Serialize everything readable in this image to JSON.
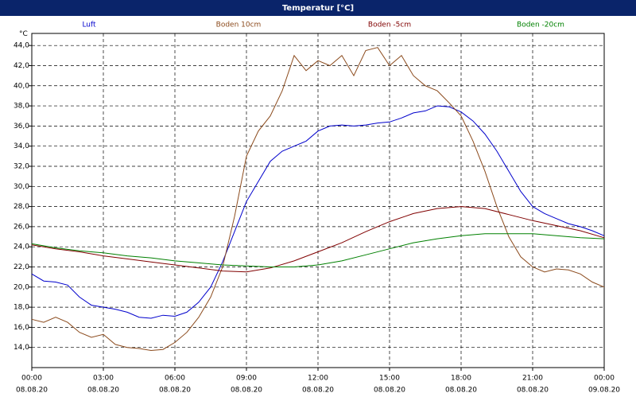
{
  "chart_data": {
    "type": "line",
    "title": "Temperatur [°C]",
    "y_unit": "°C",
    "xlim": [
      0,
      24
    ],
    "ylim": [
      12.0,
      45.2
    ],
    "grid": true,
    "xticks": [
      {
        "value": 0,
        "label": "00:00"
      },
      {
        "value": 3,
        "label": "03:00"
      },
      {
        "value": 6,
        "label": "06:00"
      },
      {
        "value": 9,
        "label": "09:00"
      },
      {
        "value": 12,
        "label": "12:00"
      },
      {
        "value": 15,
        "label": "15:00"
      },
      {
        "value": 18,
        "label": "18:00"
      },
      {
        "value": 21,
        "label": "21:00"
      },
      {
        "value": 24,
        "label": "00:00"
      }
    ],
    "xtick_dates": [
      "08.08.20",
      "08.08.20",
      "08.08.20",
      "08.08.20",
      "08.08.20",
      "08.08.20",
      "08.08.20",
      "08.08.20",
      "09.08.20"
    ],
    "yticks": [
      {
        "value": 14,
        "label": "14,0"
      },
      {
        "value": 16,
        "label": "16,0"
      },
      {
        "value": 18,
        "label": "18,0"
      },
      {
        "value": 20,
        "label": "20,0"
      },
      {
        "value": 22,
        "label": "22,0"
      },
      {
        "value": 24,
        "label": "24,0"
      },
      {
        "value": 26,
        "label": "26,0"
      },
      {
        "value": 28,
        "label": "28,0"
      },
      {
        "value": 30,
        "label": "30,0"
      },
      {
        "value": 32,
        "label": "32,0"
      },
      {
        "value": 34,
        "label": "34,0"
      },
      {
        "value": 36,
        "label": "36,0"
      },
      {
        "value": 38,
        "label": "38,0"
      },
      {
        "value": 40,
        "label": "40,0"
      },
      {
        "value": 42,
        "label": "42,0"
      },
      {
        "value": 44,
        "label": "44,0"
      }
    ],
    "series": [
      {
        "name": "Luft",
        "color": "#0000cc",
        "x": [
          0,
          0.5,
          1,
          1.5,
          2,
          2.5,
          3,
          3.5,
          4,
          4.5,
          5,
          5.5,
          6,
          6.5,
          7,
          7.5,
          8,
          8.5,
          9,
          9.5,
          10,
          10.5,
          11,
          11.5,
          12,
          12.5,
          13,
          13.5,
          14,
          14.5,
          15,
          15.5,
          16,
          16.5,
          17,
          17.5,
          18,
          18.5,
          19,
          19.5,
          20,
          20.5,
          21,
          21.5,
          22,
          22.5,
          23,
          23.5,
          24
        ],
        "values": [
          21.3,
          20.6,
          20.5,
          20.2,
          19.0,
          18.2,
          18.0,
          17.8,
          17.5,
          17.0,
          16.9,
          17.2,
          17.1,
          17.5,
          18.5,
          20.0,
          22.5,
          25.5,
          28.5,
          30.5,
          32.5,
          33.5,
          34.0,
          34.5,
          35.5,
          36.0,
          36.1,
          36.0,
          36.1,
          36.3,
          36.4,
          36.8,
          37.3,
          37.5,
          38.0,
          37.9,
          37.4,
          36.5,
          35.2,
          33.5,
          31.5,
          29.5,
          28.0,
          27.3,
          26.8,
          26.3,
          26.0,
          25.6,
          25.1
        ]
      },
      {
        "name": "Boden 10cm",
        "color": "#8b4a1c",
        "x": [
          0,
          0.5,
          1,
          1.5,
          2,
          2.5,
          3,
          3.5,
          4,
          4.5,
          5,
          5.5,
          6,
          6.5,
          7,
          7.5,
          8,
          8.5,
          9,
          9.5,
          10,
          10.5,
          11,
          11.5,
          12,
          12.5,
          13,
          13.5,
          14,
          14.5,
          15,
          15.5,
          16,
          16.5,
          17,
          17.5,
          18,
          18.5,
          19,
          19.5,
          20,
          20.5,
          21,
          21.5,
          22,
          22.5,
          23,
          23.5,
          24
        ],
        "values": [
          16.8,
          16.5,
          17.0,
          16.5,
          15.5,
          15.0,
          15.3,
          14.3,
          14.0,
          13.9,
          13.7,
          13.8,
          14.5,
          15.5,
          17.0,
          19.0,
          22.0,
          27.0,
          33.0,
          35.5,
          37.0,
          39.5,
          43.0,
          41.5,
          42.5,
          42.0,
          43.0,
          41.0,
          43.5,
          43.8,
          42.0,
          43.0,
          41.0,
          40.0,
          39.5,
          38.3,
          37.0,
          34.5,
          31.5,
          28.0,
          25.0,
          23.0,
          22.0,
          21.5,
          21.8,
          21.7,
          21.3,
          20.5,
          20.0
        ]
      },
      {
        "name": "Boden -5cm",
        "color": "#800000",
        "x": [
          0,
          1,
          2,
          3,
          4,
          5,
          6,
          7,
          8,
          9,
          10,
          11,
          12,
          13,
          14,
          15,
          16,
          17,
          18,
          19,
          20,
          21,
          22,
          23,
          24
        ],
        "values": [
          24.2,
          23.8,
          23.5,
          23.1,
          22.8,
          22.5,
          22.2,
          21.9,
          21.6,
          21.5,
          21.9,
          22.6,
          23.5,
          24.4,
          25.5,
          26.5,
          27.3,
          27.8,
          28.0,
          27.8,
          27.2,
          26.6,
          26.1,
          25.6,
          24.9
        ]
      },
      {
        "name": "Boden -20cm",
        "color": "#008000",
        "x": [
          0,
          1,
          2,
          3,
          4,
          5,
          6,
          7,
          8,
          9,
          10,
          11,
          12,
          13,
          14,
          15,
          16,
          17,
          18,
          19,
          20,
          21,
          22,
          23,
          24
        ],
        "values": [
          24.3,
          23.9,
          23.6,
          23.4,
          23.1,
          22.9,
          22.6,
          22.4,
          22.2,
          22.1,
          22.0,
          22.0,
          22.2,
          22.6,
          23.2,
          23.8,
          24.4,
          24.8,
          25.1,
          25.3,
          25.3,
          25.3,
          25.1,
          24.9,
          24.8
        ]
      }
    ]
  }
}
